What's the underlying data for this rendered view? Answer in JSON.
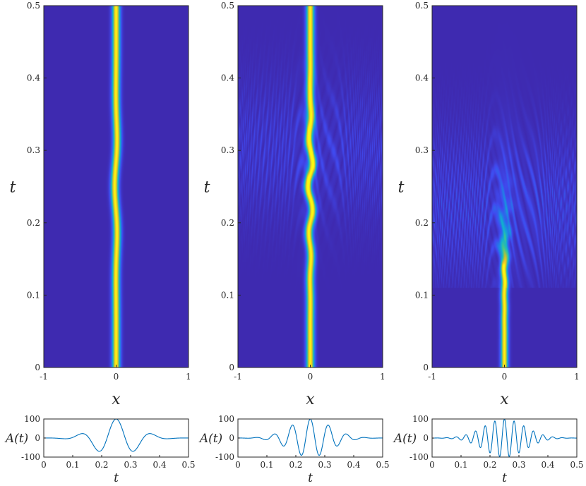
{
  "colors": {
    "background": "#3a2fb3",
    "ridge_core": "#fde725",
    "ridge_mid": "#35b5c9",
    "ripple": "#3f5fe0",
    "line": "#0072bd",
    "axis": "#262626"
  },
  "chart_data": [
    {
      "type": "heatmap",
      "title": "",
      "xlabel": "x",
      "ylabel": "t",
      "xlim": [
        -1,
        1
      ],
      "ylim": [
        0,
        0.5
      ],
      "xticks": [
        "-1",
        "0",
        "1"
      ],
      "yticks": [
        "0",
        "0.1",
        "0.2",
        "0.3",
        "0.4",
        "0.5"
      ],
      "colormap": "parula",
      "ridge": {
        "center_x": 0,
        "width": 0.055,
        "wobble_amplitude": 0.02,
        "wobble_freq": 7,
        "wobble_center_t": 0.25,
        "wobble_spread_t": 0.1
      },
      "ripples": "none",
      "fade_after_t": null
    },
    {
      "type": "heatmap",
      "title": "",
      "xlabel": "x",
      "ylabel": "t",
      "xlim": [
        -1,
        1
      ],
      "ylim": [
        0,
        0.5
      ],
      "xticks": [
        "-1",
        "0",
        "1"
      ],
      "yticks": [
        "0",
        "0.1",
        "0.2",
        "0.3",
        "0.4",
        "0.5"
      ],
      "colormap": "parula",
      "ridge": {
        "center_x": 0,
        "width": 0.055,
        "wobble_amplitude": 0.035,
        "wobble_freq": 15,
        "wobble_center_t": 0.25,
        "wobble_spread_t": 0.09
      },
      "ripples": "moderate",
      "fade_after_t": null
    },
    {
      "type": "heatmap",
      "title": "",
      "xlabel": "x",
      "ylabel": "t",
      "xlim": [
        -1,
        1
      ],
      "ylim": [
        0,
        0.5
      ],
      "xticks": [
        "-1",
        "0",
        "1"
      ],
      "yticks": [
        "0",
        "0.1",
        "0.2",
        "0.3",
        "0.4",
        "0.5"
      ],
      "colormap": "parula",
      "ridge": {
        "center_x": 0,
        "width": 0.05,
        "wobble_amplitude": 0.03,
        "wobble_freq": 28,
        "wobble_center_t": 0.25,
        "wobble_spread_t": 0.1
      },
      "ripples": "strong",
      "fade_after_t": 0.14
    },
    {
      "type": "line",
      "title": "",
      "xlabel": "t",
      "ylabel": "A(t)",
      "xlim": [
        0,
        0.5
      ],
      "ylim": [
        -100,
        100
      ],
      "xticks": [
        "0",
        "0.1",
        "0.2",
        "0.3",
        "0.4",
        "0.5"
      ],
      "yticks": [
        "-100",
        "0",
        "100"
      ],
      "series": [
        {
          "formula": "100*exp(-((t-0.25)/0.1)^2)*cos(2*pi*8*(t-0.25))",
          "amplitude": 100,
          "frequency": 8,
          "center": 0.25,
          "spread": 0.1
        }
      ]
    },
    {
      "type": "line",
      "title": "",
      "xlabel": "t",
      "ylabel": "A(t)",
      "xlim": [
        0,
        0.5
      ],
      "ylim": [
        -100,
        100
      ],
      "xticks": [
        "0",
        "0.1",
        "0.2",
        "0.3",
        "0.4",
        "0.5"
      ],
      "yticks": [
        "-100",
        "0",
        "100"
      ],
      "series": [
        {
          "formula": "100*exp(-((t-0.25)/0.1)^2)*cos(2*pi*16*(t-0.25))",
          "amplitude": 100,
          "frequency": 16,
          "center": 0.25,
          "spread": 0.1
        }
      ]
    },
    {
      "type": "line",
      "title": "",
      "xlabel": "t",
      "ylabel": "A(t)",
      "xlim": [
        0,
        0.5
      ],
      "ylim": [
        -100,
        100
      ],
      "xticks": [
        "0",
        "0.1",
        "0.2",
        "0.3",
        "0.4",
        "0.5"
      ],
      "yticks": [
        "-100",
        "0",
        "100"
      ],
      "series": [
        {
          "formula": "100*exp(-((t-0.25)/0.1)^2)*cos(2*pi*30*(t-0.25))",
          "amplitude": 100,
          "frequency": 30,
          "center": 0.25,
          "spread": 0.1
        }
      ]
    }
  ]
}
